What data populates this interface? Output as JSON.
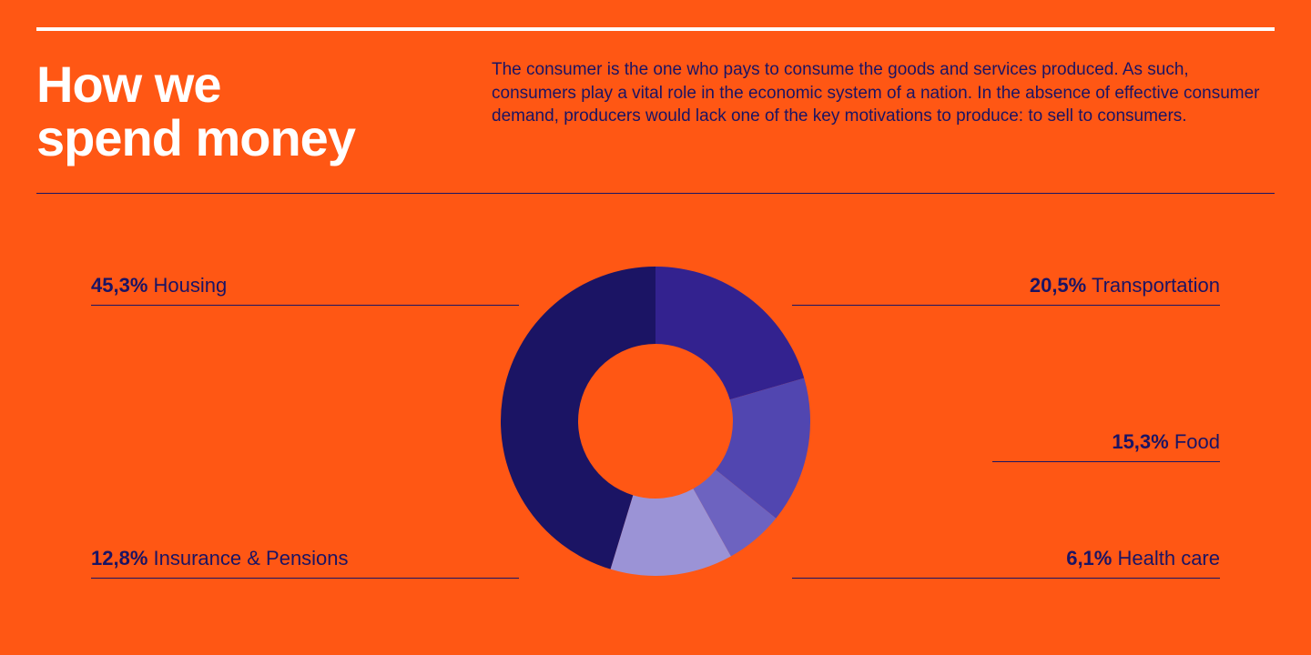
{
  "background_color": "#ff5714",
  "title_color": "#ffffff",
  "text_color": "#1b1464",
  "title": "How we\nspend money",
  "body": "The consumer is the one who pays to consume the goods and services produced. As such, consumers play a vital role in the economic system of a nation. In the absence of effective consumer demand, producers would lack one of the key motivations to produce: to sell to consumers.",
  "donut": {
    "type": "pie",
    "outer_radius": 170,
    "inner_radius": 85,
    "start_angle_deg": -90,
    "segments": [
      {
        "key": "transportation",
        "label": "Transportation",
        "pct_display": "20,5%",
        "value": 20.5,
        "color": "#33228f"
      },
      {
        "key": "food",
        "label": "Food",
        "pct_display": "15,3%",
        "value": 15.3,
        "color": "#5146b0"
      },
      {
        "key": "healthcare",
        "label": "Health care",
        "pct_display": "6,1%",
        "value": 6.1,
        "color": "#6d63c0"
      },
      {
        "key": "insurance",
        "label": "Insurance & Pensions",
        "pct_display": "12,8%",
        "value": 12.8,
        "color": "#9b93d6"
      },
      {
        "key": "housing",
        "label": "Housing",
        "pct_display": "45,3%",
        "value": 45.3,
        "color": "#1b1464"
      }
    ]
  },
  "labels": {
    "housing": {
      "pct": "45,3%",
      "name": "Housing"
    },
    "insurance": {
      "pct": "12,8%",
      "name": "Insurance & Pensions"
    },
    "transportation": {
      "pct": "20,5%",
      "name": "Transportation"
    },
    "food": {
      "pct": "15,3%",
      "name": "Food"
    },
    "healthcare": {
      "pct": "6,1%",
      "name": "Health care"
    }
  }
}
